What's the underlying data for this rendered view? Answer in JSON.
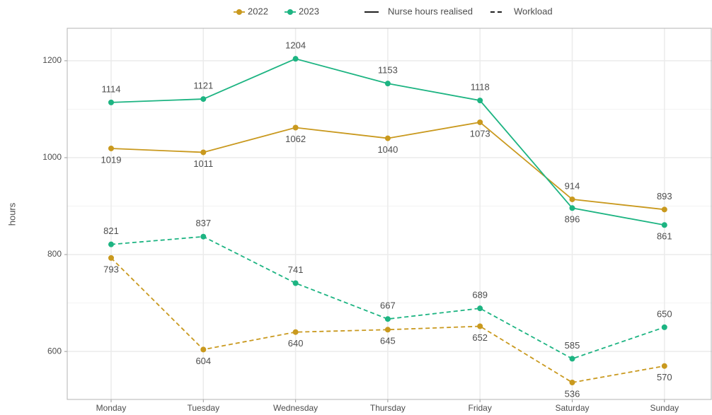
{
  "chart_data": {
    "type": "line",
    "y_label": "hours",
    "categories": [
      "Monday",
      "Tuesday",
      "Wednesday",
      "Thursday",
      "Friday",
      "Saturday",
      "Sunday"
    ],
    "color_legend": [
      {
        "name": "2022",
        "color": "#c9991e"
      },
      {
        "name": "2023",
        "color": "#1db482"
      }
    ],
    "linetype_legend": [
      {
        "name": "Nurse hours realised",
        "dashed": false
      },
      {
        "name": "Workload",
        "dashed": true
      }
    ],
    "series": [
      {
        "color": "#c9991e",
        "dashed": false,
        "values": [
          1019,
          1011,
          1062,
          1040,
          1073,
          914,
          893
        ]
      },
      {
        "color": "#1db482",
        "dashed": false,
        "values": [
          1114,
          1121,
          1204,
          1153,
          1118,
          896,
          861
        ]
      },
      {
        "color": "#c9991e",
        "dashed": true,
        "values": [
          793,
          604,
          640,
          645,
          652,
          536,
          570
        ]
      },
      {
        "color": "#1db482",
        "dashed": true,
        "values": [
          821,
          837,
          741,
          667,
          689,
          585,
          650
        ]
      }
    ],
    "ylim": [
      501,
      1267
    ],
    "yticks": [
      600,
      800,
      1000,
      1200
    ],
    "minor_yticks": [
      700,
      900,
      1100
    ],
    "grid": true
  }
}
